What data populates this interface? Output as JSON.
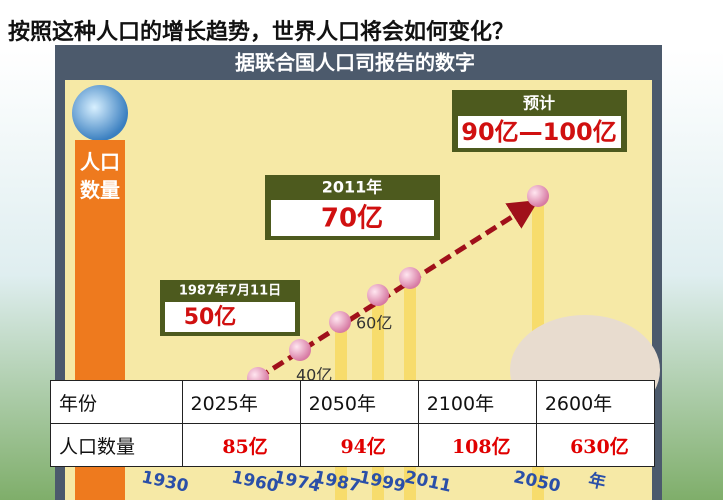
{
  "title": "按照这种人口的增长趋势，世界人口将会如何变化？",
  "infographic": {
    "heading": "据联合国人口司报告的数字",
    "axis_label": "人口数量",
    "callouts": [
      {
        "title": "预计",
        "value": "90亿—100亿"
      },
      {
        "title": "2011年",
        "value": "70亿"
      },
      {
        "title": "1987年7月11日",
        "value": "50亿"
      }
    ],
    "point_labels": [
      "40亿",
      "60亿"
    ],
    "years": [
      "1930",
      "1960",
      "1974",
      "1987",
      "1999",
      "2011",
      "2050"
    ],
    "year_unit": "年"
  },
  "table": {
    "rows": [
      [
        "年份",
        "2025年",
        "2050年",
        "2100年",
        "2600年"
      ],
      [
        "人口数量",
        "85亿",
        "94亿",
        "108亿",
        "630亿"
      ]
    ]
  }
}
